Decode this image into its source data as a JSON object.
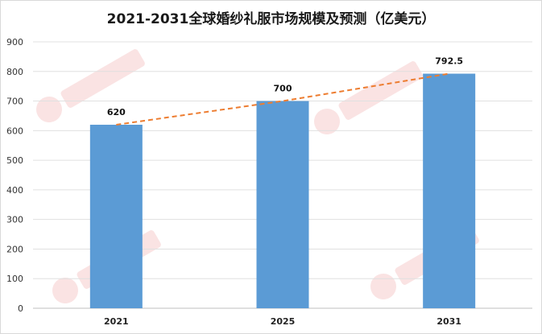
{
  "chart_data": {
    "type": "bar",
    "title": "2021-2031全球婚纱礼服市场规模及预测（亿美元）",
    "xlabel": "",
    "ylabel": "",
    "categories": [
      "2021",
      "2025",
      "2031"
    ],
    "series": [
      {
        "values": [
          620,
          700,
          792.5
        ],
        "color": "#5b9bd5"
      }
    ],
    "data_labels": [
      "620",
      "700",
      "792.5"
    ],
    "trendline": {
      "style": "dashed",
      "color": "#ed7d31"
    },
    "ylim": [
      0,
      900
    ],
    "yticks": [
      0,
      100,
      200,
      300,
      400,
      500,
      600,
      700,
      800,
      900
    ],
    "grid": true,
    "legend": "none"
  }
}
